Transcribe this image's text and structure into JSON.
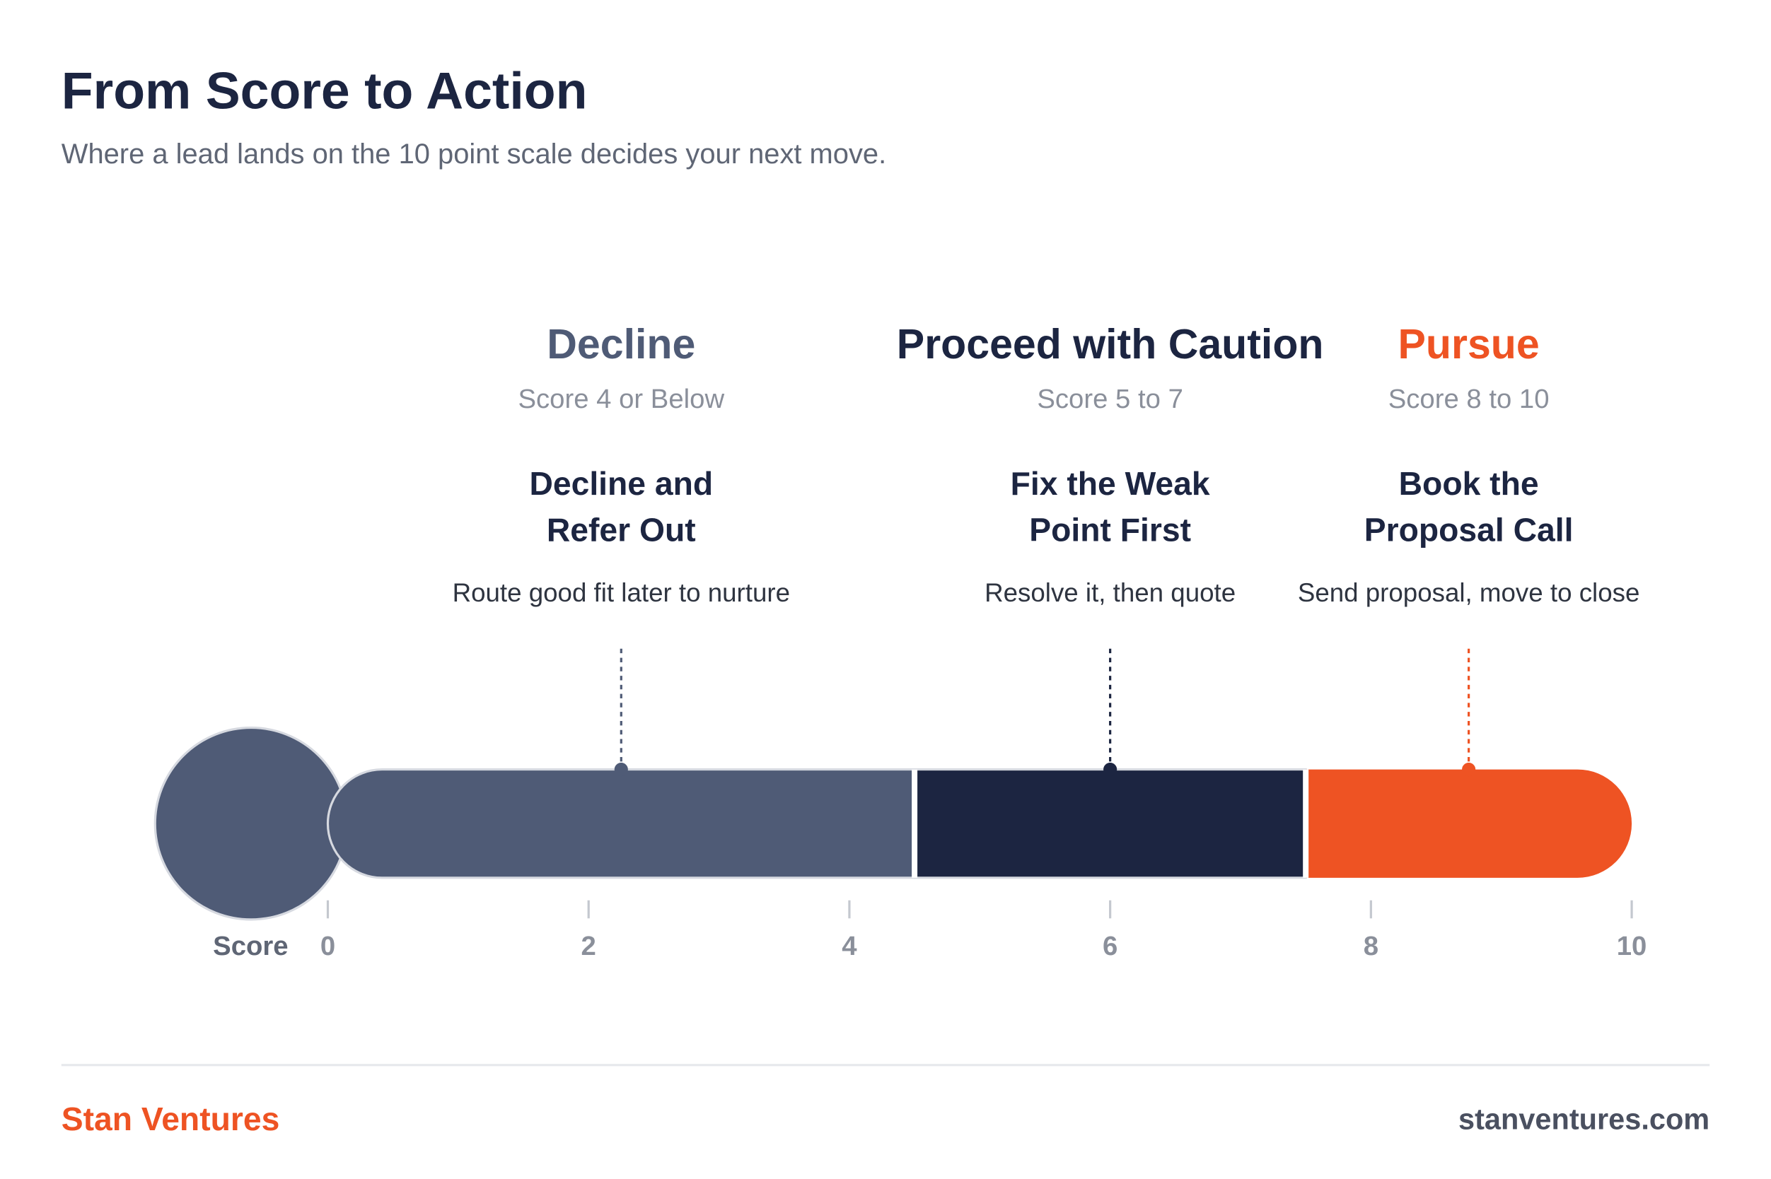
{
  "chart_data": {
    "type": "range_bar",
    "title": "From Score to Action",
    "subtitle": "Where a lead lands on the 10 point scale decides your next move.",
    "xlabel": "Score",
    "xlim": [
      0,
      10
    ],
    "xticks": [
      0,
      2,
      4,
      6,
      8,
      10
    ],
    "segments": [
      {
        "name": "Decline",
        "range": "Score 4 or Below",
        "action": [
          "Decline and",
          "Refer Out"
        ],
        "detail": "Route good fit later to nurture",
        "start": 0,
        "end": 4.5,
        "color": "#4f5b76"
      },
      {
        "name": "Proceed with Caution",
        "range": "Score 5 to 7",
        "action": [
          "Fix the Weak",
          "Point First"
        ],
        "detail": "Resolve it, then quote",
        "start": 4.5,
        "end": 7.5,
        "color": "#1c2541"
      },
      {
        "name": "Pursue",
        "range": "Score 8 to 10",
        "action": [
          "Book the",
          "Proposal Call"
        ],
        "detail": "Send proposal, move to close",
        "start": 7.5,
        "end": 10,
        "color": "#ee5323"
      }
    ],
    "footer": {
      "brand": "Stan Ventures",
      "url": "stanventures.com"
    }
  }
}
